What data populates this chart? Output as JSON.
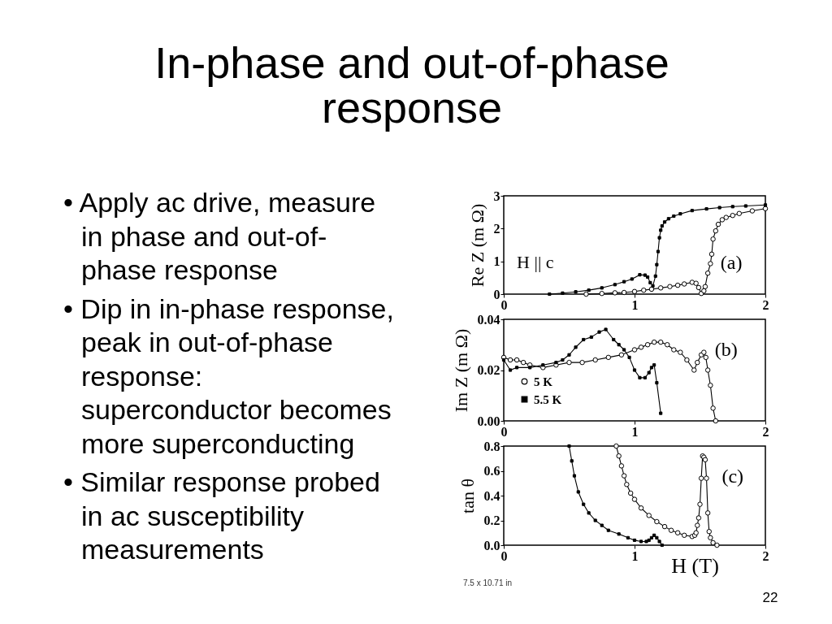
{
  "chart_data": [
    {
      "type": "other",
      "title": "In-phase and out-of-phase response",
      "annotations": [
        "• Apply ac drive, measure in phase and out-of-phase response",
        "• Dip in in-phase response, peak in out-of-phase response: superconductor becomes more superconducting",
        "• Similar response probed in  ac susceptibility measurements"
      ]
    },
    {
      "type": "line",
      "ylabel": "Re Z (m Ω)",
      "xlim": [
        0,
        2
      ],
      "xticks": [
        0,
        1,
        2
      ],
      "ylim": [
        0,
        3
      ],
      "yticks": [
        0,
        1,
        2,
        3
      ],
      "annotations": [
        "H || c",
        "(a)"
      ],
      "series": [
        {
          "color": "#000000",
          "marker": "circle",
          "x": [
            0.63,
            0.75,
            0.85,
            0.92,
            1.0,
            1.07,
            1.13,
            1.2,
            1.27,
            1.33,
            1.38,
            1.44,
            1.47,
            1.49,
            1.51,
            1.53,
            1.54,
            1.56,
            1.58,
            1.59,
            1.6,
            1.62,
            1.64,
            1.67,
            1.7,
            1.75,
            1.8,
            1.9,
            2.0
          ],
          "values": [
            0.0,
            0.02,
            0.04,
            0.05,
            0.08,
            0.12,
            0.15,
            0.19,
            0.23,
            0.27,
            0.31,
            0.36,
            0.33,
            0.2,
            0.02,
            0.1,
            0.23,
            0.64,
            0.93,
            1.22,
            1.68,
            1.93,
            2.13,
            2.27,
            2.34,
            2.4,
            2.46,
            2.54,
            2.61
          ]
        },
        {
          "color": "#000000",
          "marker": "square",
          "x": [
            0.35,
            0.45,
            0.55,
            0.65,
            0.75,
            0.85,
            0.92,
            0.98,
            1.04,
            1.08,
            1.1,
            1.12,
            1.14,
            1.16,
            1.17,
            1.18,
            1.19,
            1.2,
            1.21,
            1.23,
            1.26,
            1.3,
            1.35,
            1.44,
            1.55,
            1.65,
            1.75,
            1.85,
            2.0
          ],
          "values": [
            0.0,
            0.03,
            0.07,
            0.12,
            0.19,
            0.29,
            0.38,
            0.46,
            0.59,
            0.58,
            0.52,
            0.35,
            0.25,
            0.55,
            0.9,
            1.3,
            1.72,
            1.95,
            2.08,
            2.2,
            2.3,
            2.38,
            2.45,
            2.55,
            2.6,
            2.64,
            2.67,
            2.69,
            2.72
          ]
        }
      ]
    },
    {
      "type": "line",
      "ylabel": "Im Z (m Ω)",
      "xlim": [
        0,
        2
      ],
      "xticks": [
        0,
        1,
        2
      ],
      "ylim": [
        0,
        0.04
      ],
      "yticks": [
        {
          "value": 0,
          "label": "0.00"
        },
        0.02,
        0.04
      ],
      "legend": "bottom left",
      "annotations": [
        "(b)"
      ],
      "series": [
        {
          "name": "5 K",
          "color": "#000000",
          "marker": "circle",
          "x": [
            0,
            0.05,
            0.1,
            0.15,
            0.2,
            0.3,
            0.4,
            0.5,
            0.6,
            0.7,
            0.8,
            0.9,
            1.0,
            1.05,
            1.1,
            1.15,
            1.2,
            1.25,
            1.3,
            1.35,
            1.4,
            1.455,
            1.48,
            1.51,
            1.53,
            1.545,
            1.56,
            1.58,
            1.6,
            1.62
          ],
          "values": [
            0.025,
            0.024,
            0.024,
            0.023,
            0.022,
            0.021,
            0.022,
            0.023,
            0.023,
            0.024,
            0.025,
            0.026,
            0.028,
            0.029,
            0.03,
            0.031,
            0.031,
            0.03,
            0.028,
            0.027,
            0.024,
            0.02,
            0.023,
            0.026,
            0.027,
            0.025,
            0.02,
            0.014,
            0.005,
            0.0
          ]
        },
        {
          "name": "5.5 K",
          "color": "#000000",
          "marker": "square",
          "x": [
            0,
            0.05,
            0.1,
            0.2,
            0.3,
            0.4,
            0.45,
            0.5,
            0.55,
            0.61,
            0.67,
            0.73,
            0.78,
            0.84,
            0.88,
            0.92,
            0.96,
            1.0,
            1.04,
            1.08,
            1.11,
            1.13,
            1.15,
            1.17,
            1.2
          ],
          "values": [
            0.024,
            0.02,
            0.021,
            0.021,
            0.022,
            0.023,
            0.024,
            0.026,
            0.029,
            0.032,
            0.033,
            0.035,
            0.036,
            0.032,
            0.03,
            0.028,
            0.025,
            0.02,
            0.017,
            0.017,
            0.019,
            0.021,
            0.022,
            0.015,
            0.003
          ]
        }
      ]
    },
    {
      "type": "line",
      "xlabel": "H (T)",
      "ylabel": "tan θ",
      "xlim": [
        0,
        2
      ],
      "xticks": [
        0,
        1,
        2
      ],
      "ylim": [
        0,
        0.8
      ],
      "yticks": [
        {
          "value": 0,
          "label": "0.0"
        },
        0.2,
        0.4,
        0.6,
        0.8
      ],
      "annotations": [
        "(c)"
      ],
      "series": [
        {
          "color": "#000000",
          "marker": "circle",
          "x": [
            0.86,
            0.88,
            0.9,
            0.92,
            0.94,
            0.97,
            1.0,
            1.05,
            1.11,
            1.17,
            1.23,
            1.28,
            1.33,
            1.38,
            1.44,
            1.46,
            1.47,
            1.48,
            1.49,
            1.5,
            1.51,
            1.52,
            1.53,
            1.54,
            1.55,
            1.56,
            1.57,
            1.58,
            1.6,
            1.63
          ],
          "values": [
            0.8,
            0.72,
            0.64,
            0.56,
            0.49,
            0.42,
            0.37,
            0.3,
            0.24,
            0.19,
            0.15,
            0.12,
            0.1,
            0.08,
            0.07,
            0.08,
            0.1,
            0.16,
            0.22,
            0.33,
            0.54,
            0.72,
            0.71,
            0.69,
            0.54,
            0.26,
            0.11,
            0.06,
            0.02,
            0.0
          ]
        },
        {
          "color": "#000000",
          "marker": "square",
          "x": [
            0.5,
            0.52,
            0.54,
            0.57,
            0.61,
            0.65,
            0.7,
            0.75,
            0.8,
            0.88,
            0.95,
            1.0,
            1.05,
            1.09,
            1.11,
            1.13,
            1.15,
            1.17,
            1.19,
            1.21
          ],
          "values": [
            0.8,
            0.68,
            0.56,
            0.43,
            0.33,
            0.26,
            0.2,
            0.16,
            0.12,
            0.09,
            0.06,
            0.04,
            0.03,
            0.03,
            0.04,
            0.06,
            0.08,
            0.06,
            0.03,
            0.0
          ]
        }
      ]
    },
    {
      "type": "other",
      "annotations": [
        "7.5 x 10.71 in",
        "22"
      ]
    }
  ]
}
